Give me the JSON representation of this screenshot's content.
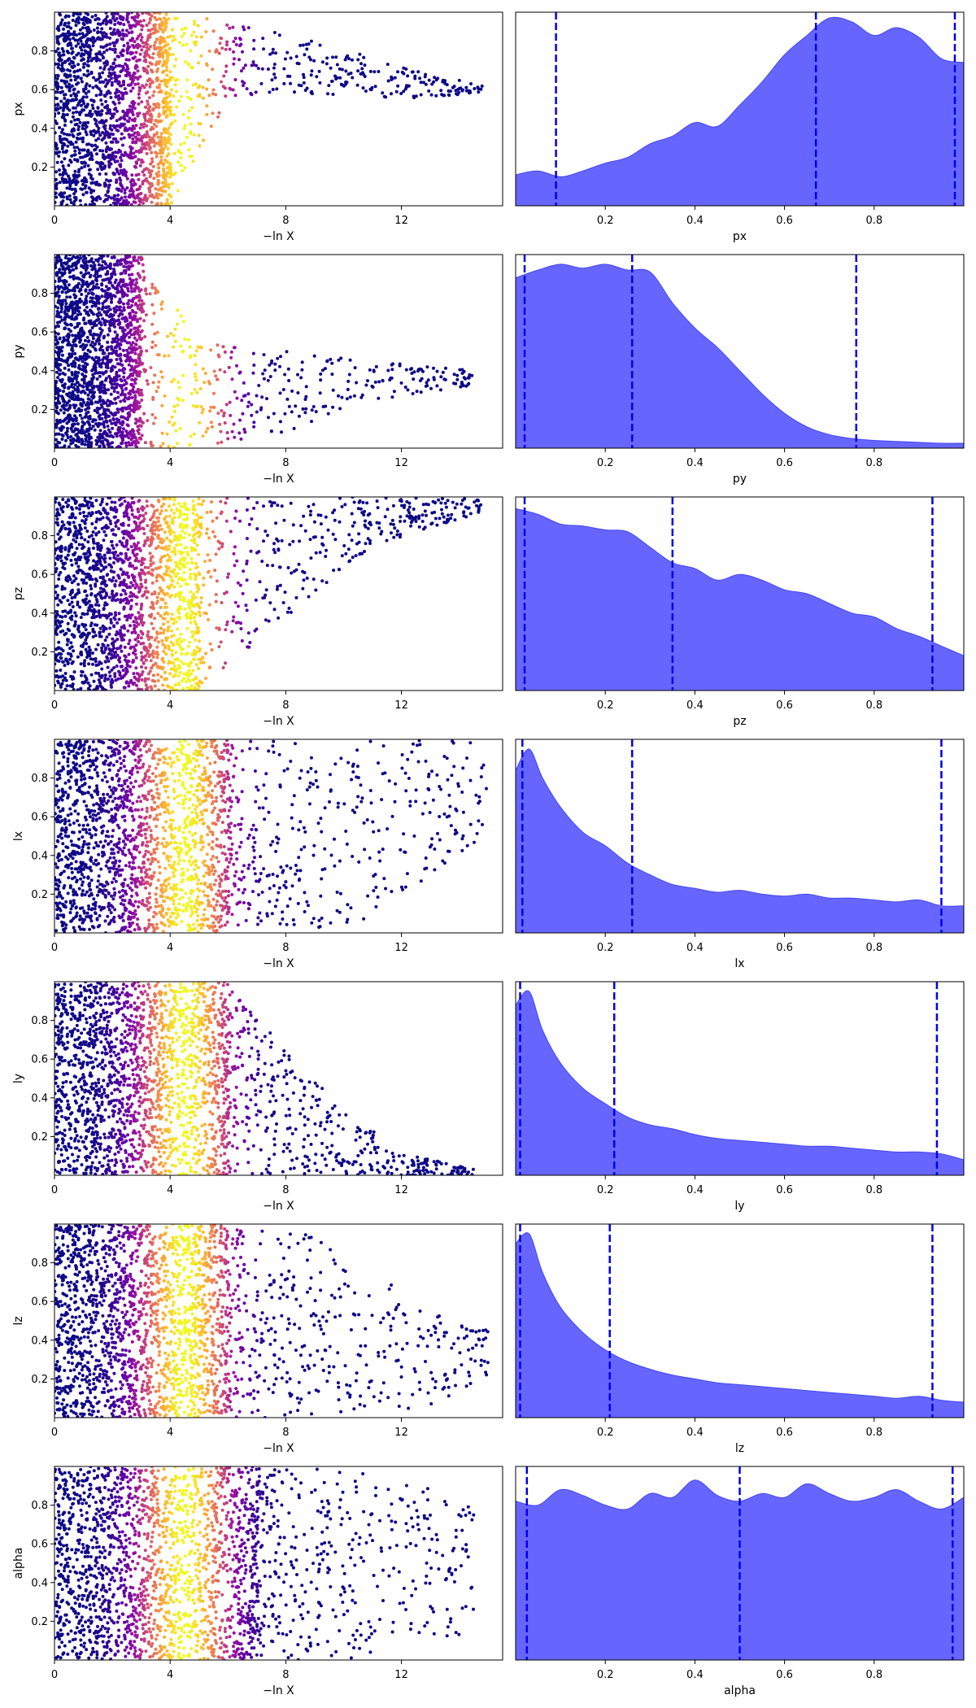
{
  "chart_data": [
    {
      "type": "scatter",
      "panel": "trace",
      "param": "px",
      "xlabel": "−ln X",
      "ylabel": "px",
      "xlim": [
        0,
        15.5
      ],
      "ylim": [
        0,
        1
      ],
      "xticks": [
        0,
        4,
        8,
        12
      ],
      "yticks": [
        0.2,
        0.4,
        0.6,
        0.8
      ],
      "colormap": "plasma",
      "weight_peak_x": 4.5,
      "weight_width": 1.6,
      "cloud": {
        "left": [
          0,
          0.0,
          1.0
        ],
        "right": [
          4,
          0.0,
          1.0
        ],
        "tail": [
          [
            4,
            0.0,
            1.0
          ],
          [
            6,
            0.55,
            0.95
          ],
          [
            9,
            0.58,
            0.85
          ],
          [
            12,
            0.55,
            0.72
          ],
          [
            14.8,
            0.58,
            0.62
          ]
        ]
      }
    },
    {
      "type": "area",
      "panel": "posterior",
      "param": "px",
      "xlabel": "px",
      "xlim": [
        0,
        1
      ],
      "xticks": [
        0.2,
        0.4,
        0.6,
        0.8
      ],
      "x": [
        0.0,
        0.05,
        0.1,
        0.15,
        0.2,
        0.25,
        0.3,
        0.35,
        0.4,
        0.45,
        0.5,
        0.55,
        0.6,
        0.65,
        0.7,
        0.75,
        0.8,
        0.85,
        0.9,
        0.95,
        1.0
      ],
      "density": [
        0.16,
        0.18,
        0.15,
        0.18,
        0.22,
        0.25,
        0.32,
        0.36,
        0.43,
        0.41,
        0.52,
        0.64,
        0.78,
        0.88,
        0.97,
        0.95,
        0.88,
        0.92,
        0.87,
        0.76,
        0.74
      ],
      "quantile_lines": [
        0.09,
        0.67,
        0.98
      ],
      "fill_color": "#6666ff",
      "line_color": "#0000ee"
    },
    {
      "type": "scatter",
      "panel": "trace",
      "param": "py",
      "xlabel": "−ln X",
      "ylabel": "py",
      "xlim": [
        0,
        15.5
      ],
      "ylim": [
        0,
        1
      ],
      "xticks": [
        0,
        4,
        8,
        12
      ],
      "yticks": [
        0.2,
        0.4,
        0.6,
        0.8
      ],
      "colormap": "plasma",
      "weight_peak_x": 4.5,
      "weight_width": 1.6,
      "cloud": {
        "left": [
          0,
          0.0,
          1.0
        ],
        "right": [
          3,
          0.0,
          1.0
        ],
        "tail": [
          [
            3,
            0.0,
            1.0
          ],
          [
            5,
            0.0,
            0.55
          ],
          [
            8,
            0.08,
            0.5
          ],
          [
            11,
            0.25,
            0.45
          ],
          [
            14.5,
            0.32,
            0.4
          ]
        ]
      }
    },
    {
      "type": "area",
      "panel": "posterior",
      "param": "py",
      "xlabel": "py",
      "xlim": [
        0,
        1
      ],
      "xticks": [
        0.2,
        0.4,
        0.6,
        0.8
      ],
      "x": [
        0.0,
        0.05,
        0.1,
        0.15,
        0.2,
        0.25,
        0.3,
        0.35,
        0.4,
        0.45,
        0.5,
        0.55,
        0.6,
        0.65,
        0.7,
        0.75,
        0.8,
        0.85,
        0.9,
        0.95,
        1.0
      ],
      "density": [
        0.88,
        0.92,
        0.95,
        0.93,
        0.95,
        0.92,
        0.91,
        0.75,
        0.62,
        0.52,
        0.4,
        0.28,
        0.18,
        0.11,
        0.07,
        0.05,
        0.04,
        0.035,
        0.03,
        0.025,
        0.025
      ],
      "quantile_lines": [
        0.02,
        0.26,
        0.76
      ],
      "fill_color": "#6666ff",
      "line_color": "#0000ee"
    },
    {
      "type": "scatter",
      "panel": "trace",
      "param": "pz",
      "xlabel": "−ln X",
      "ylabel": "pz",
      "xlim": [
        0,
        15.5
      ],
      "ylim": [
        0,
        1
      ],
      "xticks": [
        0,
        4,
        8,
        12
      ],
      "yticks": [
        0.2,
        0.4,
        0.6,
        0.8
      ],
      "colormap": "plasma",
      "weight_peak_x": 4.5,
      "weight_width": 1.6,
      "cloud": {
        "left": [
          0,
          0.0,
          1.0
        ],
        "right": [
          5,
          0.0,
          1.0
        ],
        "tail": [
          [
            5,
            0.0,
            1.0
          ],
          [
            7,
            0.25,
            1.0
          ],
          [
            9,
            0.5,
            1.0
          ],
          [
            11,
            0.75,
            1.0
          ],
          [
            14.8,
            0.92,
            0.99
          ]
        ]
      }
    },
    {
      "type": "area",
      "panel": "posterior",
      "param": "pz",
      "xlabel": "pz",
      "xlim": [
        0,
        1
      ],
      "xticks": [
        0.2,
        0.4,
        0.6,
        0.8
      ],
      "x": [
        0.0,
        0.05,
        0.1,
        0.15,
        0.2,
        0.25,
        0.3,
        0.35,
        0.4,
        0.45,
        0.5,
        0.55,
        0.6,
        0.65,
        0.7,
        0.75,
        0.8,
        0.85,
        0.9,
        0.95,
        1.0
      ],
      "density": [
        0.94,
        0.91,
        0.86,
        0.85,
        0.83,
        0.82,
        0.74,
        0.66,
        0.63,
        0.57,
        0.6,
        0.57,
        0.52,
        0.5,
        0.45,
        0.4,
        0.38,
        0.32,
        0.28,
        0.23,
        0.18
      ],
      "quantile_lines": [
        0.02,
        0.35,
        0.93
      ],
      "fill_color": "#6666ff",
      "line_color": "#0000ee"
    },
    {
      "type": "scatter",
      "panel": "trace",
      "param": "lx",
      "xlabel": "−ln X",
      "ylabel": "lx",
      "xlim": [
        0,
        15.5
      ],
      "ylim": [
        0,
        1
      ],
      "xticks": [
        0,
        4,
        8,
        12
      ],
      "yticks": [
        0.2,
        0.4,
        0.6,
        0.8
      ],
      "colormap": "plasma",
      "weight_peak_x": 4.5,
      "weight_width": 1.6,
      "cloud": {
        "left": [
          0,
          0.0,
          1.0
        ],
        "right": [
          6,
          0.0,
          1.0
        ],
        "tail": [
          [
            6,
            0.0,
            1.0
          ],
          [
            9,
            0.02,
            1.0
          ],
          [
            11,
            0.05,
            1.0
          ],
          [
            13,
            0.3,
            1.0
          ],
          [
            15,
            0.5,
            1.0
          ]
        ]
      }
    },
    {
      "type": "area",
      "panel": "posterior",
      "param": "lx",
      "xlabel": "lx",
      "xlim": [
        0,
        1
      ],
      "xticks": [
        0.2,
        0.4,
        0.6,
        0.8
      ],
      "x": [
        0.0,
        0.03,
        0.06,
        0.1,
        0.15,
        0.2,
        0.25,
        0.3,
        0.35,
        0.4,
        0.45,
        0.5,
        0.55,
        0.6,
        0.65,
        0.7,
        0.75,
        0.8,
        0.85,
        0.9,
        0.95,
        1.0
      ],
      "density": [
        0.84,
        0.95,
        0.8,
        0.65,
        0.52,
        0.45,
        0.36,
        0.3,
        0.25,
        0.23,
        0.21,
        0.22,
        0.2,
        0.19,
        0.2,
        0.18,
        0.18,
        0.17,
        0.16,
        0.17,
        0.14,
        0.14
      ],
      "quantile_lines": [
        0.015,
        0.26,
        0.95
      ],
      "fill_color": "#6666ff",
      "line_color": "#0000ee"
    },
    {
      "type": "scatter",
      "panel": "trace",
      "param": "ly",
      "xlabel": "−ln X",
      "ylabel": "ly",
      "xlim": [
        0,
        15.5
      ],
      "ylim": [
        0,
        1
      ],
      "xticks": [
        0,
        4,
        8,
        12
      ],
      "yticks": [
        0.2,
        0.4,
        0.6,
        0.8
      ],
      "colormap": "plasma",
      "weight_peak_x": 4.5,
      "weight_width": 1.6,
      "cloud": {
        "left": [
          0,
          0.0,
          1.0
        ],
        "right": [
          6,
          0.0,
          1.0
        ],
        "tail": [
          [
            6,
            0.0,
            1.0
          ],
          [
            8,
            0.0,
            0.65
          ],
          [
            10,
            0.0,
            0.35
          ],
          [
            12,
            0.0,
            0.12
          ],
          [
            14.5,
            0.0,
            0.03
          ]
        ]
      }
    },
    {
      "type": "area",
      "panel": "posterior",
      "param": "ly",
      "xlabel": "ly",
      "xlim": [
        0,
        1
      ],
      "xticks": [
        0.2,
        0.4,
        0.6,
        0.8
      ],
      "x": [
        0.0,
        0.03,
        0.06,
        0.1,
        0.15,
        0.2,
        0.25,
        0.3,
        0.35,
        0.4,
        0.45,
        0.5,
        0.55,
        0.6,
        0.65,
        0.7,
        0.75,
        0.8,
        0.85,
        0.9,
        0.95,
        1.0
      ],
      "density": [
        0.88,
        0.95,
        0.75,
        0.58,
        0.45,
        0.37,
        0.3,
        0.26,
        0.24,
        0.21,
        0.19,
        0.18,
        0.17,
        0.16,
        0.15,
        0.15,
        0.14,
        0.13,
        0.12,
        0.12,
        0.11,
        0.08
      ],
      "quantile_lines": [
        0.01,
        0.22,
        0.94
      ],
      "fill_color": "#6666ff",
      "line_color": "#0000ee"
    },
    {
      "type": "scatter",
      "panel": "trace",
      "param": "lz",
      "xlabel": "−ln X",
      "ylabel": "lz",
      "xlim": [
        0,
        15.5
      ],
      "ylim": [
        0,
        1
      ],
      "xticks": [
        0,
        4,
        8,
        12
      ],
      "yticks": [
        0.2,
        0.4,
        0.6,
        0.8
      ],
      "colormap": "plasma",
      "weight_peak_x": 4.5,
      "weight_width": 1.6,
      "cloud": {
        "left": [
          0,
          0.0,
          1.0
        ],
        "right": [
          6,
          0.0,
          1.0
        ],
        "tail": [
          [
            6,
            0.0,
            1.0
          ],
          [
            9,
            0.0,
            0.95
          ],
          [
            11,
            0.02,
            0.75
          ],
          [
            13,
            0.05,
            0.55
          ],
          [
            15,
            0.2,
            0.45
          ]
        ]
      }
    },
    {
      "type": "area",
      "panel": "posterior",
      "param": "lz",
      "xlabel": "lz",
      "xlim": [
        0,
        1
      ],
      "xticks": [
        0.2,
        0.4,
        0.6,
        0.8
      ],
      "x": [
        0.0,
        0.03,
        0.06,
        0.1,
        0.15,
        0.2,
        0.25,
        0.3,
        0.35,
        0.4,
        0.45,
        0.5,
        0.55,
        0.6,
        0.65,
        0.7,
        0.75,
        0.8,
        0.85,
        0.9,
        0.95,
        1.0
      ],
      "density": [
        0.9,
        0.95,
        0.75,
        0.57,
        0.44,
        0.35,
        0.29,
        0.25,
        0.22,
        0.2,
        0.18,
        0.17,
        0.16,
        0.15,
        0.14,
        0.13,
        0.12,
        0.11,
        0.1,
        0.11,
        0.09,
        0.08
      ],
      "quantile_lines": [
        0.01,
        0.21,
        0.93
      ],
      "fill_color": "#6666ff",
      "line_color": "#0000ee"
    },
    {
      "type": "scatter",
      "panel": "trace",
      "param": "alpha",
      "xlabel": "−ln X",
      "ylabel": "alpha",
      "xlim": [
        0,
        15.5
      ],
      "ylim": [
        0,
        1
      ],
      "xticks": [
        0,
        4,
        8,
        12
      ],
      "yticks": [
        0.2,
        0.4,
        0.6,
        0.8
      ],
      "colormap": "plasma",
      "weight_peak_x": 4.5,
      "weight_width": 1.6,
      "cloud": {
        "left": [
          0,
          0.0,
          1.0
        ],
        "right": [
          7,
          0.0,
          1.0
        ],
        "tail": [
          [
            7,
            0.0,
            1.0
          ],
          [
            10,
            0.0,
            1.0
          ],
          [
            12,
            0.05,
            0.95
          ],
          [
            14.5,
            0.15,
            0.85
          ]
        ]
      }
    },
    {
      "type": "area",
      "panel": "posterior",
      "param": "alpha",
      "xlabel": "alpha",
      "xlim": [
        0,
        1
      ],
      "xticks": [
        0.2,
        0.4,
        0.6,
        0.8
      ],
      "x": [
        0.0,
        0.05,
        0.1,
        0.15,
        0.2,
        0.25,
        0.3,
        0.35,
        0.4,
        0.45,
        0.5,
        0.55,
        0.6,
        0.65,
        0.7,
        0.75,
        0.8,
        0.85,
        0.9,
        0.95,
        1.0
      ],
      "density": [
        0.82,
        0.8,
        0.88,
        0.85,
        0.8,
        0.78,
        0.86,
        0.84,
        0.93,
        0.85,
        0.82,
        0.86,
        0.84,
        0.91,
        0.86,
        0.82,
        0.84,
        0.88,
        0.82,
        0.78,
        0.84
      ],
      "quantile_lines": [
        0.025,
        0.5,
        0.975
      ],
      "fill_color": "#6666ff",
      "line_color": "#0000ee"
    }
  ]
}
